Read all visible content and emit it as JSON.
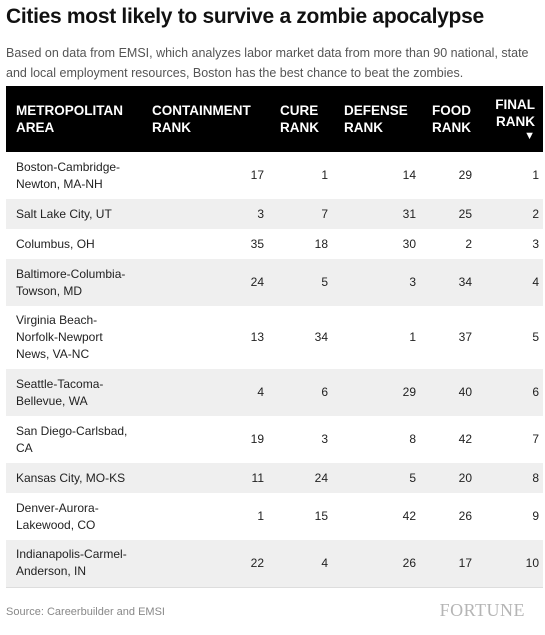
{
  "title": "Cities most likely to survive a zombie apocalypse",
  "subtitle": "Based on data from EMSI, which analyzes labor market data from more than 90 national, state and local employment resources, Boston has the best chance to beat the zombies.",
  "source": "Source: Careerbuilder and EMSI",
  "logo": "FORTUNE",
  "chart_data": {
    "type": "table",
    "columns": [
      "METROPOLITAN AREA",
      "CONTAINMENT RANK",
      "CURE RANK",
      "DEFENSE RANK",
      "FOOD RANK",
      "FINAL RANK"
    ],
    "sort_indicator": "▼",
    "rows": [
      {
        "area": "Boston-Cambridge-Newton, MA-NH",
        "containment": 17,
        "cure": 1,
        "defense": 14,
        "food": 29,
        "final": 1
      },
      {
        "area": "Salt Lake City, UT",
        "containment": 3,
        "cure": 7,
        "defense": 31,
        "food": 25,
        "final": 2
      },
      {
        "area": "Columbus, OH",
        "containment": 35,
        "cure": 18,
        "defense": 30,
        "food": 2,
        "final": 3
      },
      {
        "area": "Baltimore-Columbia-Towson, MD",
        "containment": 24,
        "cure": 5,
        "defense": 3,
        "food": 34,
        "final": 4
      },
      {
        "area": "Virginia Beach-Norfolk-Newport News, VA-NC",
        "containment": 13,
        "cure": 34,
        "defense": 1,
        "food": 37,
        "final": 5
      },
      {
        "area": "Seattle-Tacoma-Bellevue, WA",
        "containment": 4,
        "cure": 6,
        "defense": 29,
        "food": 40,
        "final": 6
      },
      {
        "area": "San Diego-Carlsbad, CA",
        "containment": 19,
        "cure": 3,
        "defense": 8,
        "food": 42,
        "final": 7
      },
      {
        "area": "Kansas City, MO-KS",
        "containment": 11,
        "cure": 24,
        "defense": 5,
        "food": 20,
        "final": 8
      },
      {
        "area": "Denver-Aurora-Lakewood, CO",
        "containment": 1,
        "cure": 15,
        "defense": 42,
        "food": 26,
        "final": 9
      },
      {
        "area": "Indianapolis-Carmel-Anderson, IN",
        "containment": 22,
        "cure": 4,
        "defense": 26,
        "food": 17,
        "final": 10
      }
    ]
  }
}
